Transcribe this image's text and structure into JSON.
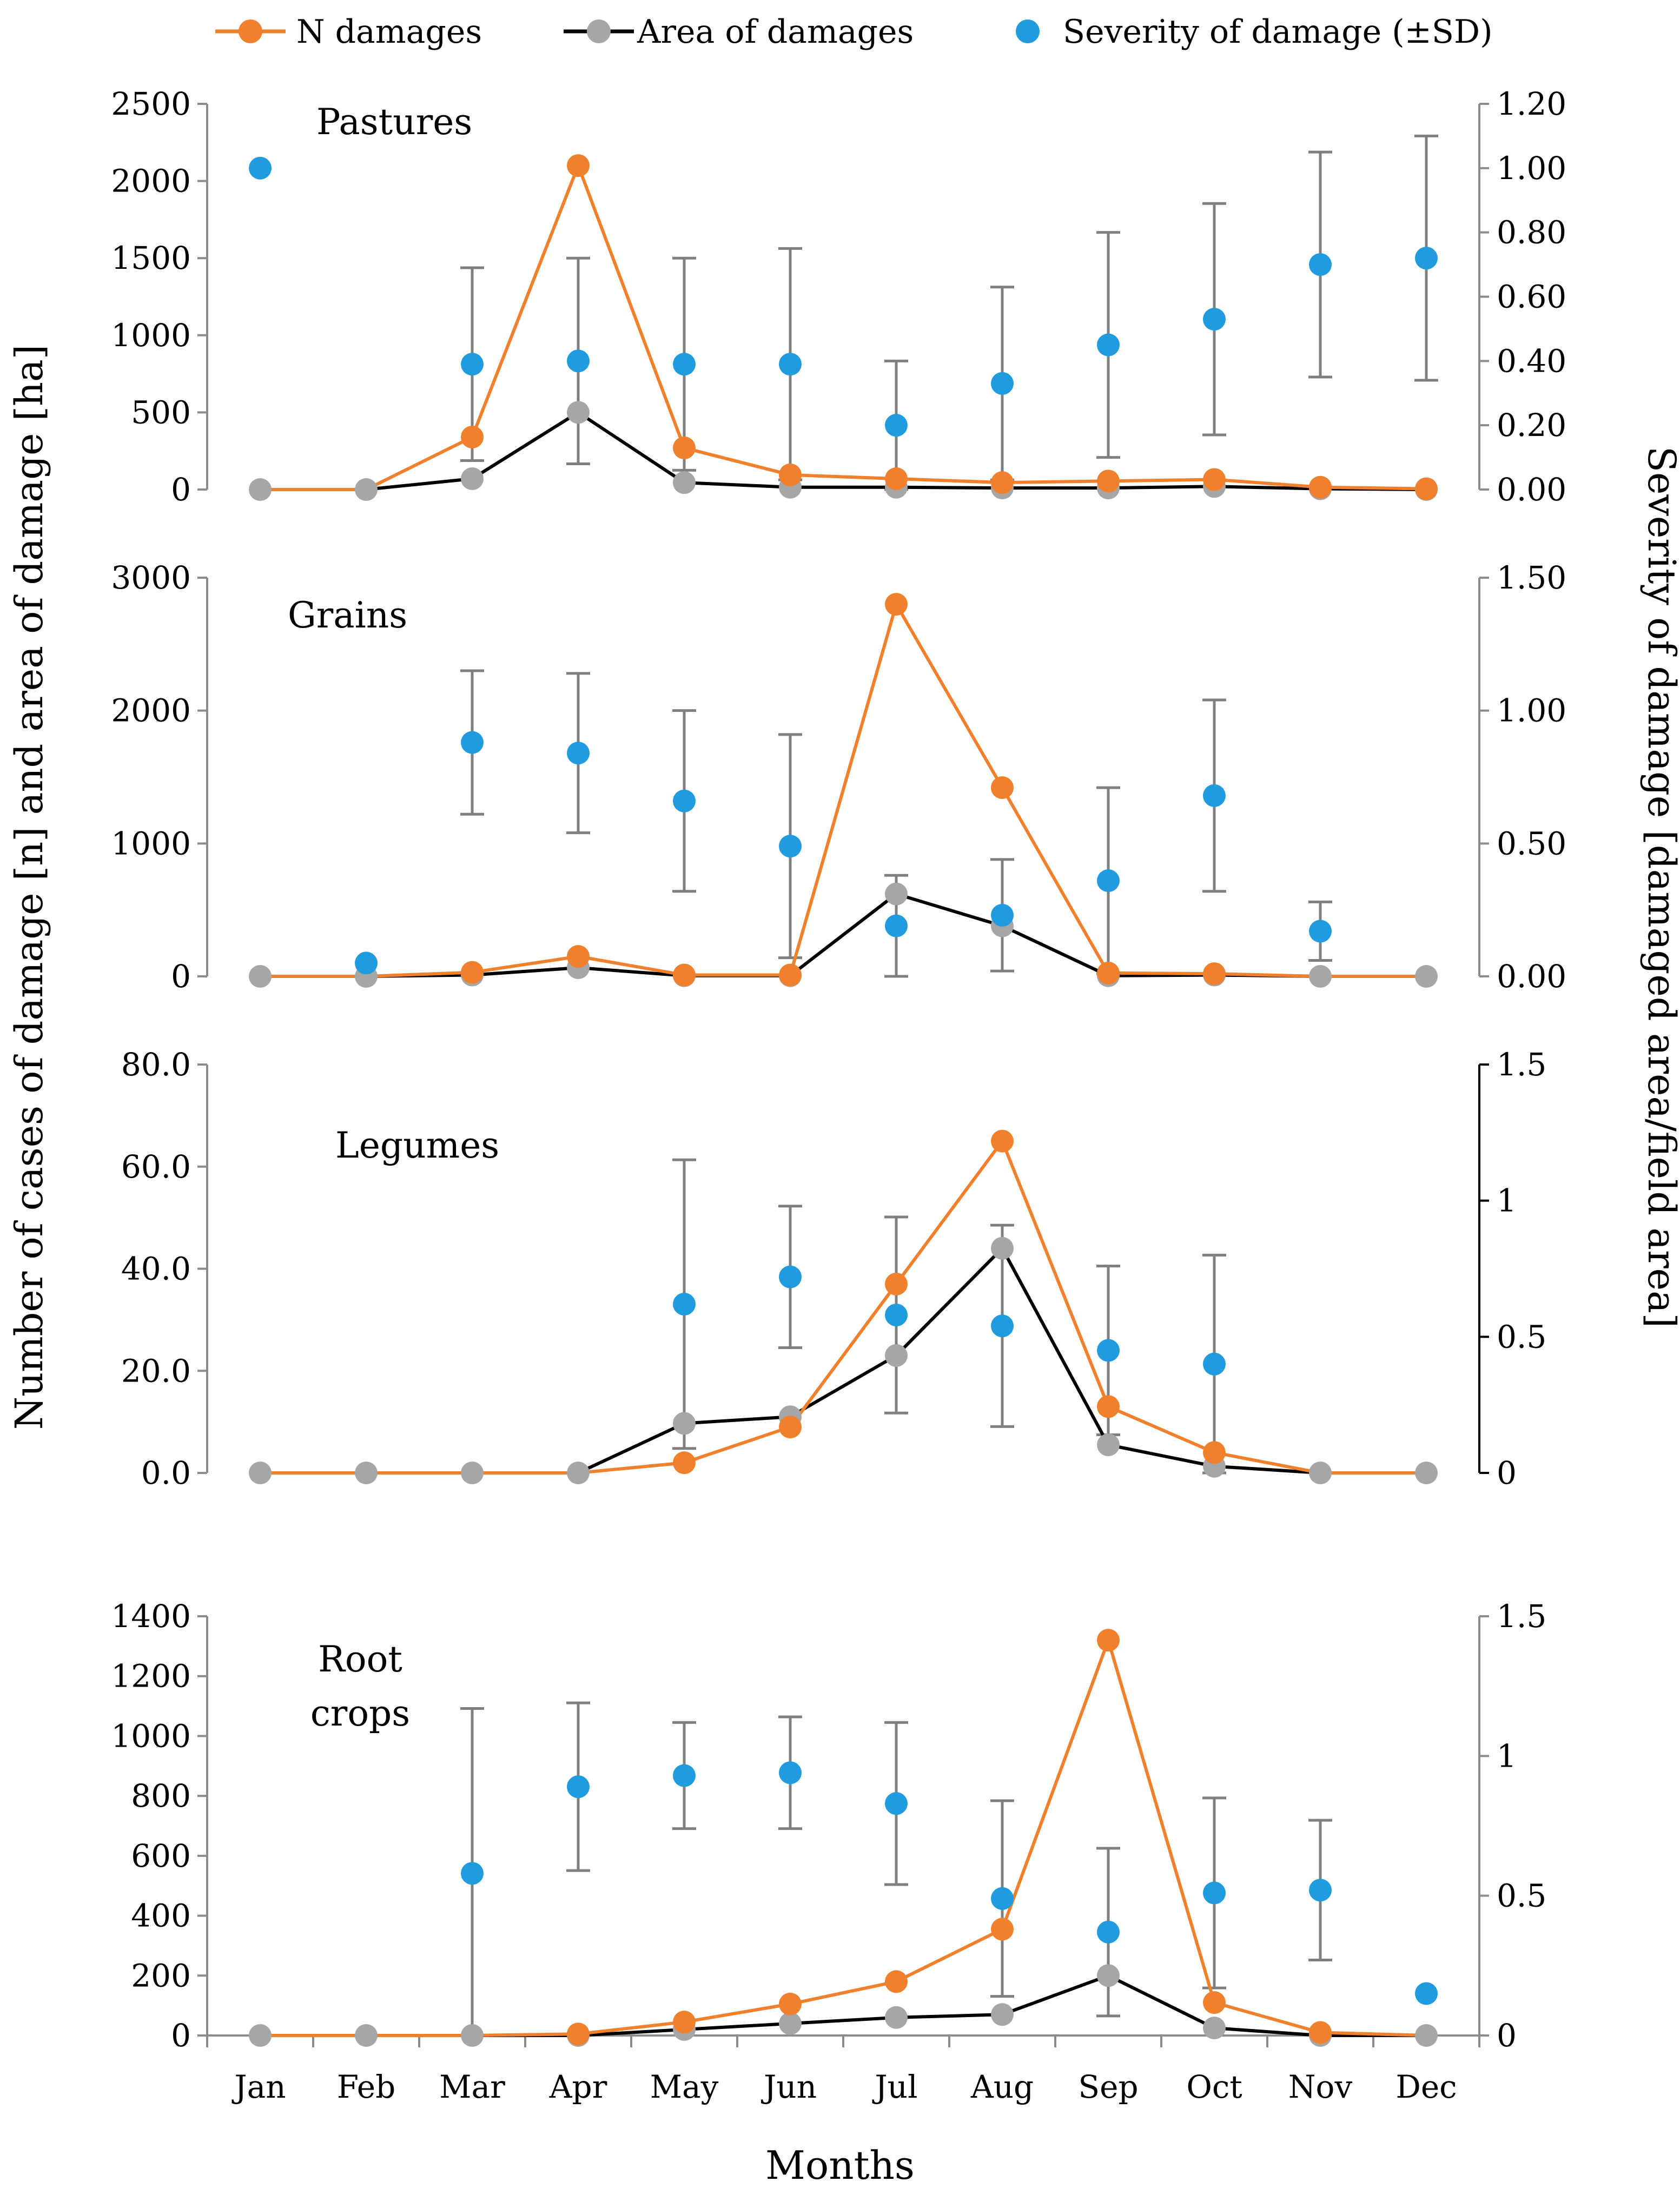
{
  "colors": {
    "n_damages": "#F0802B",
    "area_line": "#000000",
    "area_marker": "#A6A6A6",
    "severity": "#1F9BDE",
    "error_bar": "#7F7F7F",
    "axis": "#8C8C8C"
  },
  "legend": {
    "n_damages": "N damages",
    "area": "Area of damages",
    "severity": "Severity of damage (±SD)"
  },
  "y_left_label": "Number of cases of damage [n] and area of damage [ha]",
  "y_right_label": "Severity of damage [damaged area/field area]",
  "x_label": "Months",
  "chart_data": [
    {
      "type": "line",
      "title": "Pastures",
      "categories": [
        "Jan",
        "Feb",
        "Mar",
        "Apr",
        "May",
        "Jun",
        "Jul",
        "Aug",
        "Sep",
        "Oct",
        "Nov",
        "Dec"
      ],
      "left_axis": {
        "min": 0,
        "max": 2500,
        "ticks": [
          "0",
          "500",
          "1000",
          "1500",
          "2000",
          "2500"
        ]
      },
      "right_axis": {
        "min": 0,
        "max": 1.2,
        "ticks": [
          "0.00",
          "0.20",
          "0.40",
          "0.60",
          "0.80",
          "1.00",
          "1.20"
        ]
      },
      "series": [
        {
          "name": "N damages",
          "axis": "left",
          "values": [
            0,
            0,
            340,
            2100,
            270,
            95,
            70,
            45,
            55,
            65,
            15,
            5
          ]
        },
        {
          "name": "Area of damages",
          "axis": "left",
          "values": [
            0,
            0,
            70,
            500,
            45,
            15,
            15,
            10,
            10,
            20,
            5,
            0
          ]
        },
        {
          "name": "Severity of damage",
          "axis": "right",
          "values": [
            1.0,
            null,
            0.39,
            0.4,
            0.39,
            0.39,
            0.2,
            0.33,
            0.45,
            0.53,
            0.7,
            0.72
          ],
          "sd": [
            0,
            null,
            0.3,
            0.32,
            0.33,
            0.36,
            0.2,
            0.3,
            0.35,
            0.36,
            0.35,
            0.38
          ]
        }
      ]
    },
    {
      "type": "line",
      "title": "Grains",
      "categories": [
        "Jan",
        "Feb",
        "Mar",
        "Apr",
        "May",
        "Jun",
        "Jul",
        "Aug",
        "Sep",
        "Oct",
        "Nov",
        "Dec"
      ],
      "left_axis": {
        "min": 0,
        "max": 3000,
        "ticks": [
          "0",
          "1000",
          "2000",
          "3000"
        ]
      },
      "right_axis": {
        "min": 0,
        "max": 1.5,
        "ticks": [
          "0.00",
          "0.50",
          "1.00",
          "1.50"
        ]
      },
      "series": [
        {
          "name": "N damages",
          "axis": "left",
          "values": [
            0,
            0,
            30,
            150,
            10,
            10,
            2800,
            1420,
            25,
            20,
            0,
            0
          ]
        },
        {
          "name": "Area of damages",
          "axis": "left",
          "values": [
            0,
            0,
            10,
            65,
            5,
            5,
            620,
            380,
            5,
            10,
            0,
            0
          ]
        },
        {
          "name": "Severity of damage",
          "axis": "right",
          "values": [
            null,
            0.05,
            0.88,
            0.84,
            0.66,
            0.49,
            0.19,
            0.23,
            0.36,
            0.68,
            0.17,
            null
          ],
          "sd": [
            null,
            null,
            0.27,
            0.3,
            0.34,
            0.42,
            0.19,
            0.21,
            0.35,
            0.36,
            0.11,
            null
          ]
        }
      ]
    },
    {
      "type": "line",
      "title": "Legumes",
      "categories": [
        "Jan",
        "Feb",
        "Mar",
        "Apr",
        "May",
        "Jun",
        "Jul",
        "Aug",
        "Sep",
        "Oct",
        "Nov",
        "Dec"
      ],
      "left_axis": {
        "min": 0,
        "max": 80,
        "ticks": [
          "0.0",
          "20.0",
          "40.0",
          "60.0",
          "80.0"
        ]
      },
      "right_axis": {
        "min": 0,
        "max": 1.5,
        "ticks": [
          "0",
          "0.5",
          "1",
          "1.5"
        ]
      },
      "series": [
        {
          "name": "N damages",
          "axis": "left",
          "values": [
            0,
            0,
            0,
            0,
            2,
            9,
            37,
            65,
            13,
            4,
            0,
            0
          ]
        },
        {
          "name": "Area of damages",
          "axis": "left",
          "values": [
            0,
            0,
            0,
            0,
            9.7,
            11,
            23,
            44,
            5.5,
            1.3,
            0,
            0
          ]
        },
        {
          "name": "Severity of damage",
          "axis": "right",
          "values": [
            null,
            null,
            null,
            null,
            0.62,
            0.72,
            0.58,
            0.54,
            0.45,
            0.4,
            null,
            null
          ],
          "sd": [
            null,
            null,
            null,
            null,
            0.53,
            0.26,
            0.36,
            0.37,
            0.31,
            0.4,
            null,
            null
          ]
        }
      ]
    },
    {
      "type": "line",
      "title": "Root crops",
      "categories": [
        "Jan",
        "Feb",
        "Mar",
        "Apr",
        "May",
        "Jun",
        "Jul",
        "Aug",
        "Sep",
        "Oct",
        "Nov",
        "Dec"
      ],
      "left_axis": {
        "min": 0,
        "max": 1400,
        "ticks": [
          "0",
          "200",
          "400",
          "600",
          "800",
          "1000",
          "1200",
          "1400"
        ]
      },
      "right_axis": {
        "min": 0,
        "max": 1.5,
        "ticks": [
          "0",
          "0.5",
          "1",
          "1.5"
        ]
      },
      "series": [
        {
          "name": "N damages",
          "axis": "left",
          "values": [
            0,
            0,
            0,
            5,
            45,
            105,
            180,
            355,
            1320,
            110,
            10,
            0
          ]
        },
        {
          "name": "Area of damages",
          "axis": "left",
          "values": [
            0,
            0,
            0,
            0,
            20,
            40,
            60,
            70,
            200,
            25,
            0,
            0
          ]
        },
        {
          "name": "Severity of damage",
          "axis": "right",
          "values": [
            null,
            null,
            0.58,
            0.89,
            0.93,
            0.94,
            0.83,
            0.49,
            0.37,
            0.51,
            0.52,
            0.15
          ],
          "sd": [
            null,
            null,
            0.59,
            0.3,
            0.19,
            0.2,
            0.29,
            0.35,
            0.3,
            0.34,
            0.25,
            0
          ]
        }
      ]
    }
  ]
}
